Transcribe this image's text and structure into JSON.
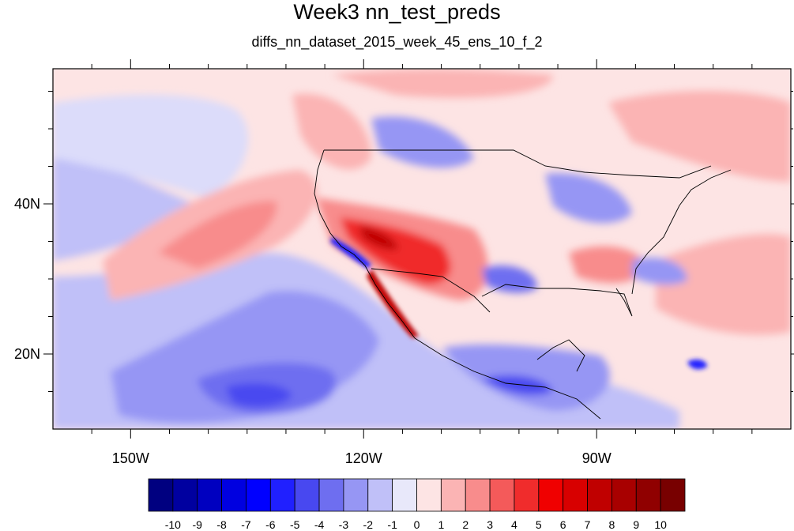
{
  "title": "Week3 nn_test_preds",
  "subtitle": "diffs_nn_dataset_2015_week_45_ens_10_f_2",
  "map": {
    "projection": "cylindrical-equidistant",
    "lon_range": [
      -160,
      -65
    ],
    "lat_range": [
      10,
      58
    ],
    "xticks": [
      {
        "lon": -150,
        "label": "150W"
      },
      {
        "lon": -120,
        "label": "120W"
      },
      {
        "lon": -90,
        "label": "90W"
      }
    ],
    "yticks": [
      {
        "lat": 40,
        "label": "40N"
      },
      {
        "lat": 20,
        "label": "20N"
      }
    ],
    "minor_xticks": [
      -155,
      -145,
      -140,
      -135,
      -130,
      -125,
      -115,
      -110,
      -105,
      -100,
      -95,
      -85,
      -80,
      -75,
      -70
    ],
    "minor_yticks": [
      15,
      25,
      30,
      35,
      45,
      50,
      55
    ]
  },
  "colorbar": {
    "levels": [
      -10,
      -9,
      -8,
      -7,
      -6,
      -5,
      -4,
      -3,
      -2,
      -1,
      0,
      1,
      2,
      3,
      4,
      5,
      6,
      7,
      8,
      9,
      10
    ],
    "labels": [
      "-10",
      "-9",
      "-8",
      "-7",
      "-6",
      "-5",
      "-4",
      "-3",
      "-2",
      "-1",
      "0",
      "1",
      "2",
      "3",
      "4",
      "5",
      "6",
      "7",
      "8",
      "9",
      "10"
    ],
    "colors": [
      "#000080",
      "#0000a0",
      "#0000c0",
      "#0000e0",
      "#0000ff",
      "#2020ff",
      "#4848f0",
      "#6e6ef0",
      "#9696f4",
      "#c0c0f8",
      "#e8e8fa",
      "#fde4e4",
      "#fbb4b4",
      "#f88c8c",
      "#f45a5a",
      "#f02c2c",
      "#f00000",
      "#d80000",
      "#c00000",
      "#a80000",
      "#900000",
      "#780000"
    ]
  }
}
